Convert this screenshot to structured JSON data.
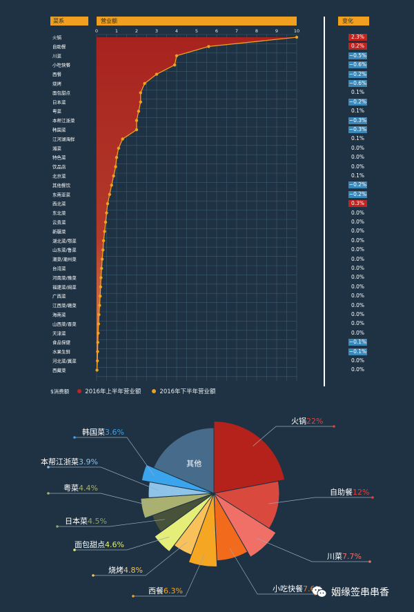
{
  "headers": {
    "cuisine": "菜系",
    "revenue": "营业额",
    "change": "变化"
  },
  "legend": {
    "unit": "$消费额",
    "h1": "2016年上半年营业额",
    "h2": "2016年下半年营业额"
  },
  "colors": {
    "bg": "#1e3243",
    "area": "#a8231f",
    "dot": "#f0a020",
    "grid": "#3d5a70",
    "up": "#c0241f",
    "down": "#3a87b8"
  },
  "chart_data": [
    {
      "type": "area",
      "orientation": "horizontal",
      "x_ticks": [
        "0",
        "1",
        "2",
        "3",
        "4",
        "5",
        "6",
        "7",
        "8",
        "9",
        "10"
      ],
      "xlim": [
        0,
        10
      ],
      "categories": [
        "火锅",
        "自助餐",
        "川菜",
        "小吃快餐",
        "西餐",
        "烧烤",
        "面包甜点",
        "日本菜",
        "粤菜",
        "本帮江浙菜",
        "韩国菜",
        "江河湖海鲜",
        "湘菜",
        "特色菜",
        "饮品店",
        "北京菜",
        "其他餐饮",
        "东南亚菜",
        "西北菜",
        "东北菜",
        "云贵菜",
        "新疆菜",
        "湖北菜/鄂菜",
        "山东菜/鲁菜",
        "潮菜/潮州菜",
        "台湾菜",
        "河南菜/豫菜",
        "福建菜/闽菜",
        "广西菜",
        "江西菜/赣菜",
        "海南菜",
        "山西菜/晋菜",
        "天津菜",
        "食品保健",
        "水果生鲜",
        "河北菜/冀菜",
        "西藏菜"
      ],
      "series": [
        {
          "name": "2016年上半年营业额",
          "values": [
            10,
            5.6,
            4.0,
            3.9,
            3.0,
            2.4,
            2.2,
            2.2,
            2.1,
            2.0,
            2.0,
            1.3,
            1.1,
            1.0,
            0.95,
            0.85,
            0.75,
            0.65,
            0.55,
            0.5,
            0.45,
            0.4,
            0.35,
            0.32,
            0.28,
            0.25,
            0.22,
            0.2,
            0.18,
            0.15,
            0.12,
            0.1,
            0.08,
            0.06,
            0.05,
            0.04,
            0.02
          ]
        },
        {
          "name": "2016年下半年营业额",
          "values": [
            10,
            5.6,
            4.0,
            3.9,
            3.0,
            2.4,
            2.2,
            2.2,
            2.1,
            2.0,
            2.0,
            1.3,
            1.1,
            1.0,
            0.95,
            0.85,
            0.75,
            0.65,
            0.55,
            0.5,
            0.45,
            0.4,
            0.35,
            0.32,
            0.28,
            0.25,
            0.22,
            0.2,
            0.18,
            0.15,
            0.12,
            0.1,
            0.08,
            0.06,
            0.05,
            0.04,
            0.02
          ]
        }
      ],
      "change": [
        "2.3%",
        "0.2%",
        "−0.5%",
        "−0.6%",
        "−0.2%",
        "−0.6%",
        "0.1%",
        "−0.2%",
        "0.1%",
        "−0.3%",
        "−0.3%",
        "0.1%",
        "0.0%",
        "0.0%",
        "0.0%",
        "0.1%",
        "−0.2%",
        "−0.2%",
        "0.3%",
        "0.0%",
        "0.0%",
        "0.0%",
        "0.0%",
        "0.0%",
        "0.0%",
        "0.0%",
        "0.0%",
        "0.0%",
        "0.0%",
        "0.0%",
        "0.0%",
        "0.0%",
        "0.0%",
        "−0.1%",
        "−0.1%",
        "0.0%",
        "0.0%"
      ],
      "change_direction": [
        "up",
        "up",
        "down",
        "down",
        "down",
        "down",
        "flat",
        "down",
        "flat",
        "down",
        "down",
        "flat",
        "flat",
        "flat",
        "flat",
        "flat",
        "down",
        "down",
        "up",
        "flat",
        "flat",
        "flat",
        "flat",
        "flat",
        "flat",
        "flat",
        "flat",
        "flat",
        "flat",
        "flat",
        "flat",
        "flat",
        "flat",
        "down",
        "down",
        "flat",
        "flat"
      ],
      "grid": true
    },
    {
      "type": "pie",
      "slices": [
        {
          "label": "火锅",
          "pct_text": "22%",
          "value": 22,
          "color": "#b5221c",
          "label_color": "#e0413a"
        },
        {
          "label": "自助餐",
          "pct_text": "12%",
          "value": 12,
          "color": "#d9493d",
          "label_color": "#e0413a"
        },
        {
          "label": "川菜",
          "pct_text": "7.7%",
          "value": 7.7,
          "color": "#f07068",
          "label_color": "#f07068"
        },
        {
          "label": "小吃快餐",
          "pct_text": "7.6%",
          "value": 7.6,
          "color": "#f26a1b",
          "label_color": "#f07a2a"
        },
        {
          "label": "西餐",
          "pct_text": "6.3%",
          "value": 6.3,
          "color": "#f5a623",
          "label_color": "#f5a623"
        },
        {
          "label": "烧烤",
          "pct_text": "4.8%",
          "value": 4.8,
          "color": "#f8c15a",
          "label_color": "#f8c15a"
        },
        {
          "label": "面包甜点",
          "pct_text": "4.6%",
          "value": 4.6,
          "color": "#e4ee78",
          "label_color": "#e4ee78"
        },
        {
          "label": "日本菜",
          "pct_text": "4.5%",
          "value": 4.5,
          "color": "#48523a",
          "label_color": "#8fa36a"
        },
        {
          "label": "粤菜",
          "pct_text": "4.4%",
          "value": 4.4,
          "color": "#a9b070",
          "label_color": "#a9b070"
        },
        {
          "label": "本帮江浙菜",
          "pct_text": "3.9%",
          "value": 3.9,
          "color": "#8fc3e8",
          "label_color": "#8fc3e8"
        },
        {
          "label": "韩国菜",
          "pct_text": "3.6%",
          "value": 3.6,
          "color": "#3aa4ec",
          "label_color": "#3aa4ec"
        },
        {
          "label": "其他",
          "pct_text": "",
          "value": 18.6,
          "color": "#476b8a",
          "label_color": "#ffffff"
        }
      ]
    }
  ],
  "watermark": "姻缘签串串香"
}
